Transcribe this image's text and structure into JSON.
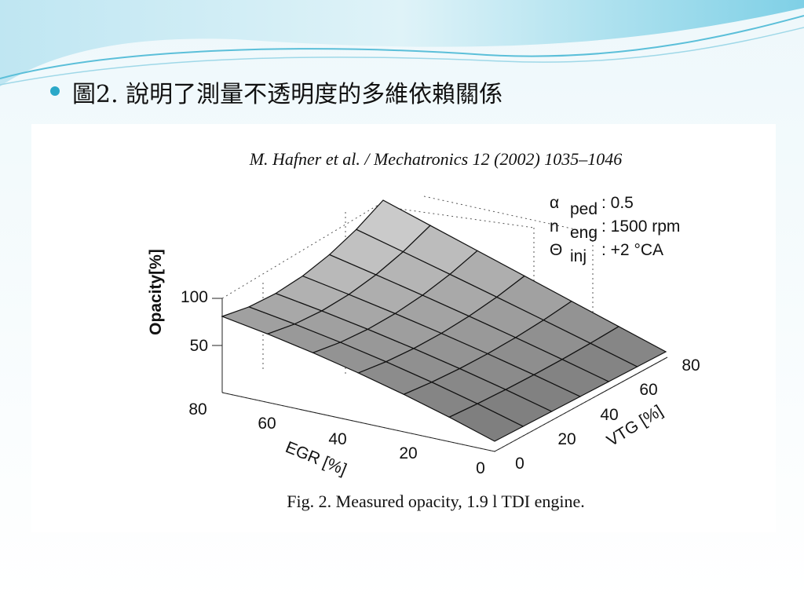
{
  "slide": {
    "bullet": "圖2. 說明了測量不透明度的多維依賴關係"
  },
  "figure": {
    "header": "M. Hafner et al. / Mechatronics 12 (2002) 1035–1046",
    "legend": [
      {
        "symbol": "α",
        "sub": "ped",
        "text": ": 0.5"
      },
      {
        "symbol": "n",
        "sub": "eng",
        "text": ": 1500 rpm"
      },
      {
        "symbol": "Θ",
        "sub": "inj",
        "text": ": +2 °CA"
      }
    ],
    "z_axis": {
      "label": "Opacity[%]",
      "ticks": [
        "100",
        "50"
      ]
    },
    "egr_axis": {
      "label": "EGR [%]",
      "ticks": [
        "80",
        "60",
        "40",
        "20",
        "0"
      ]
    },
    "vtg_axis": {
      "label": "VTG [%]",
      "ticks": [
        "0",
        "20",
        "40",
        "60",
        "80"
      ]
    },
    "caption": "Fig. 2. Measured opacity, 1.9 l TDI engine."
  }
}
